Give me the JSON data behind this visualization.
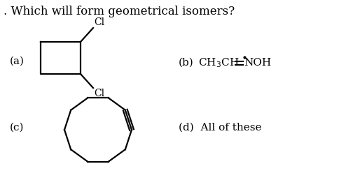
{
  "title": ". Which will form geometrical isomers?",
  "label_a": "(a)",
  "label_b": "(b)",
  "label_c": "(c)",
  "label_d": "(d)  All of these",
  "bg_color": "#ffffff",
  "text_color": "#000000",
  "line_color": "#000000",
  "line_width": 1.6,
  "font_size_title": 12,
  "font_size_label": 11,
  "font_size_formula": 11,
  "font_size_cl": 10
}
